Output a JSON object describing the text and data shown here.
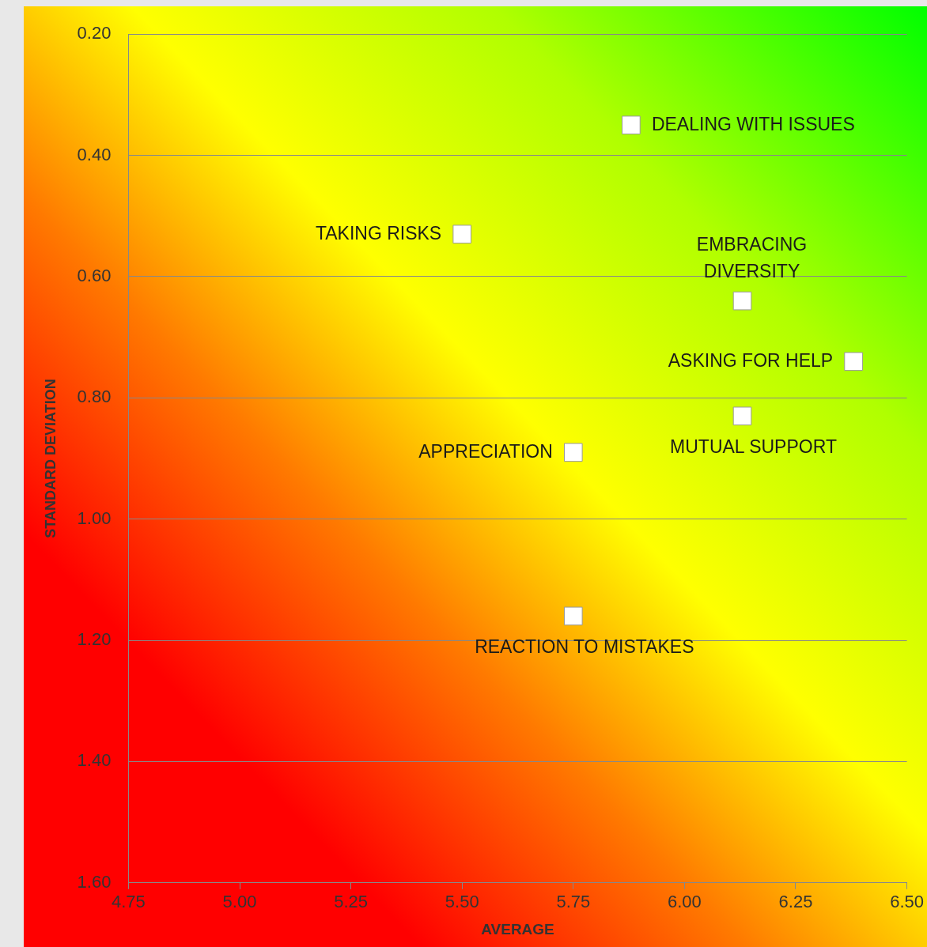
{
  "chart_data": {
    "type": "scatter",
    "xlabel": "AVERAGE",
    "ylabel": "STANDARD DEVIATION",
    "x": [
      5.88,
      5.5,
      6.13,
      6.38,
      6.13,
      5.75,
      5.75
    ],
    "values": [
      0.35,
      0.53,
      0.64,
      0.74,
      0.83,
      0.89,
      1.16
    ],
    "color": "#ffffff",
    "marker": "square",
    "xlim": [
      4.75,
      6.5
    ],
    "xticks": [
      4.75,
      {
        "value": 5,
        "label": "5.00"
      },
      5.25,
      {
        "value": 5.5,
        "label": "5.50"
      },
      5.75,
      {
        "value": 6,
        "label": "6.00"
      },
      6.25,
      {
        "value": 6.5,
        "label": "6.50"
      }
    ],
    "ylim": [
      1.6,
      0.2
    ],
    "yticks": [
      {
        "value": 0.2,
        "label": "0.20"
      },
      {
        "value": 0.4,
        "label": "0.40"
      },
      {
        "value": 0.6,
        "label": "0.60"
      },
      {
        "value": 0.8,
        "label": "0.80"
      },
      {
        "value": 1,
        "label": "1.00"
      },
      {
        "value": 1.2,
        "label": "1.20"
      },
      {
        "value": 1.4,
        "label": "1.40"
      },
      {
        "value": 1.6,
        "label": "1.60"
      }
    ],
    "grid": "y",
    "legend": false,
    "annotations": [
      {
        "text": "DEALING WITH ISSUES",
        "x": 5.88,
        "y": 0.35
      },
      {
        "text": "TAKING RISKS",
        "x": 5.5,
        "y": 0.53
      },
      {
        "text": "EMBRACING DIVERSITY",
        "x": 6.13,
        "y": 0.64
      },
      {
        "text": "ASKING FOR HELP",
        "x": 6.38,
        "y": 0.74
      },
      {
        "text": "MUTUAL SUPPORT",
        "x": 6.13,
        "y": 0.83
      },
      {
        "text": "APPRECIATION",
        "x": 5.75,
        "y": 0.89
      },
      {
        "text": "REACTION TO MISTAKES",
        "x": 5.75,
        "y": 1.16
      }
    ]
  }
}
